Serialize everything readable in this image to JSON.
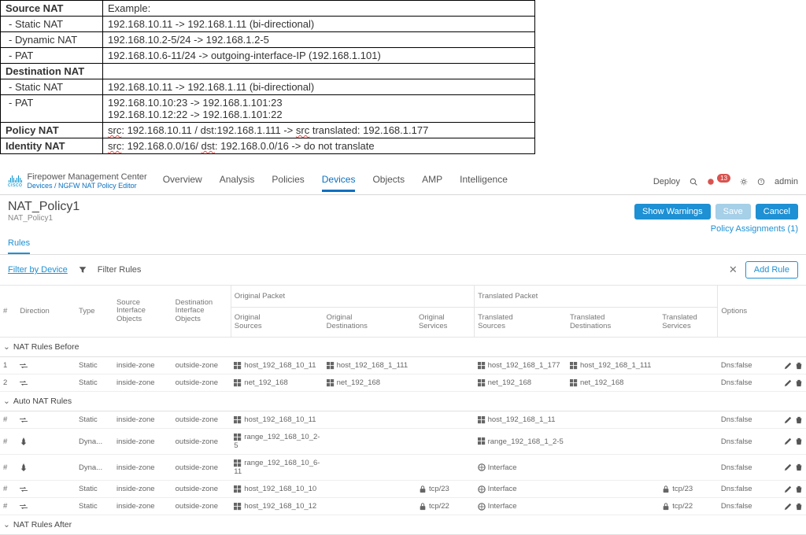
{
  "refTable": {
    "rows": [
      {
        "label": "Source NAT",
        "bold": true,
        "value": "Example:"
      },
      {
        "label": "Static NAT",
        "sub": true,
        "value": "192.168.10.11 -> 192.168.1.11 (bi-directional)"
      },
      {
        "label": "Dynamic NAT",
        "sub": true,
        "value": "192.168.10.2-5/24 -> 192.168.1.2-5"
      },
      {
        "label": "PAT",
        "sub": true,
        "value": "192.168.10.6-11/24 -> outgoing-interface-IP (192.168.1.101)"
      },
      {
        "label": "Destination NAT",
        "bold": true,
        "value": ""
      },
      {
        "label": "Static NAT",
        "sub": true,
        "value": "192.168.10.11 -> 192.168.1.11 (bi-directional)"
      },
      {
        "label": "PAT",
        "sub": true,
        "value": "192.168.10.10:23 -> 192.168.1.101:23<br>192.168.10.12:22 -> 192.168.1.101:22"
      },
      {
        "label": "Policy NAT",
        "bold": true,
        "value": "<span class='squiggle'>src</span>: 192.168.10.11 / dst:192.168.1.111 -> <span class='squiggle'>src</span> translated: 192.168.1.177"
      },
      {
        "label": "Identity NAT",
        "bold": true,
        "value": "<span class='squiggle'>src</span>: 192.168.0.0/16/ <span class='squiggle'>dst</span>: 192.168.0.0/16 -> do not translate"
      }
    ]
  },
  "header": {
    "brandTitle": "Firepower Management Center",
    "brandSub": "Devices / NGFW NAT Policy Editor",
    "ciscoLabel": "cisco",
    "navItems": [
      "Overview",
      "Analysis",
      "Policies",
      "Devices",
      "Objects",
      "AMP",
      "Intelligence"
    ],
    "navActiveIndex": 3,
    "deployLabel": "Deploy",
    "badgeCount": "13",
    "userLabel": "admin"
  },
  "page": {
    "title": "NAT_Policy1",
    "subtitle": "NAT_Policy1",
    "showWarnings": "Show Warnings",
    "save": "Save",
    "cancel": "Cancel",
    "assignments": "Policy Assignments (1)",
    "tabLabel": "Rules"
  },
  "filterBar": {
    "filterByDevice": "Filter by Device",
    "filterRules": "Filter Rules",
    "addRule": "Add Rule"
  },
  "columns": {
    "groupOriginal": "Original Packet",
    "groupTranslated": "Translated Packet",
    "num": "#",
    "direction": "Direction",
    "type": "Type",
    "srcIfObj": "Source\nInterface Objects",
    "dstIfObj": "Destination\nInterface Objects",
    "origSrc": "Original\nSources",
    "origDst": "Original\nDestinations",
    "origSvc": "Original\nServices",
    "transSrc": "Translated\nSources",
    "transDst": "Translated\nDestinations",
    "transSvc": "Translated\nServices",
    "options": "Options"
  },
  "groups": [
    {
      "title": "NAT Rules Before",
      "rows": [
        {
          "num": "1",
          "dir": "bi",
          "type": "Static",
          "srcIf": "inside-zone",
          "dstIf": "outside-zone",
          "oSrc": "host_192_168_10_11",
          "oDst": "host_192_168_1_111",
          "oSvc": "",
          "tSrc": "host_192_168_1_177",
          "tDst": "host_192_168_1_111",
          "tSvc": "",
          "opt": "Dns:false",
          "oSrcIcon": "obj",
          "oDstIcon": "obj",
          "tSrcIcon": "obj",
          "tDstIcon": "obj"
        },
        {
          "num": "2",
          "dir": "bi",
          "type": "Static",
          "srcIf": "inside-zone",
          "dstIf": "outside-zone",
          "oSrc": "net_192_168",
          "oDst": "net_192_168",
          "oSvc": "",
          "tSrc": "net_192_168",
          "tDst": "net_192_168",
          "tSvc": "",
          "opt": "Dns:false",
          "oSrcIcon": "obj",
          "oDstIcon": "obj",
          "tSrcIcon": "obj",
          "tDstIcon": "obj"
        }
      ]
    },
    {
      "title": "Auto NAT Rules",
      "rows": [
        {
          "num": "#",
          "dir": "bi",
          "type": "Static",
          "srcIf": "inside-zone",
          "dstIf": "outside-zone",
          "oSrc": "host_192_168_10_11",
          "oDst": "",
          "oSvc": "",
          "tSrc": "host_192_168_1_11",
          "tDst": "",
          "tSvc": "",
          "opt": "Dns:false",
          "oSrcIcon": "obj",
          "tSrcIcon": "obj"
        },
        {
          "num": "#",
          "dir": "uni",
          "type": "Dyna...",
          "srcIf": "inside-zone",
          "dstIf": "outside-zone",
          "oSrc": "range_192_168_10_2-5",
          "oDst": "",
          "oSvc": "",
          "tSrc": "range_192_168_1_2-5",
          "tDst": "",
          "tSvc": "",
          "opt": "Dns:false",
          "oSrcIcon": "obj",
          "tSrcIcon": "obj"
        },
        {
          "num": "#",
          "dir": "uni",
          "type": "Dyna...",
          "srcIf": "inside-zone",
          "dstIf": "outside-zone",
          "oSrc": "range_192_168_10_6-11",
          "oDst": "",
          "oSvc": "",
          "tSrc": "Interface",
          "tDst": "",
          "tSvc": "",
          "opt": "Dns:false",
          "oSrcIcon": "obj",
          "tSrcIcon": "if"
        },
        {
          "num": "#",
          "dir": "bi",
          "type": "Static",
          "srcIf": "inside-zone",
          "dstIf": "outside-zone",
          "oSrc": "host_192_168_10_10",
          "oDst": "",
          "oSvc": "tcp/23",
          "tSrc": "Interface",
          "tDst": "",
          "tSvc": "tcp/23",
          "opt": "Dns:false",
          "oSrcIcon": "obj",
          "tSrcIcon": "if",
          "oSvcIcon": "svc",
          "tSvcIcon": "svc"
        },
        {
          "num": "#",
          "dir": "bi",
          "type": "Static",
          "srcIf": "inside-zone",
          "dstIf": "outside-zone",
          "oSrc": "host_192_168_10_12",
          "oDst": "",
          "oSvc": "tcp/22",
          "tSrc": "Interface",
          "tDst": "",
          "tSvc": "tcp/22",
          "opt": "Dns:false",
          "oSrcIcon": "obj",
          "tSrcIcon": "if",
          "oSvcIcon": "svc",
          "tSvcIcon": "svc"
        }
      ]
    },
    {
      "title": "NAT Rules After",
      "rows": []
    }
  ],
  "icons": {
    "obj": "▣",
    "if": "🞧",
    "svc": "🔒",
    "bi": "⇄",
    "uni": "✶"
  },
  "colors": {
    "accent": "#1e90d4",
    "border": "#e4e4e4"
  }
}
